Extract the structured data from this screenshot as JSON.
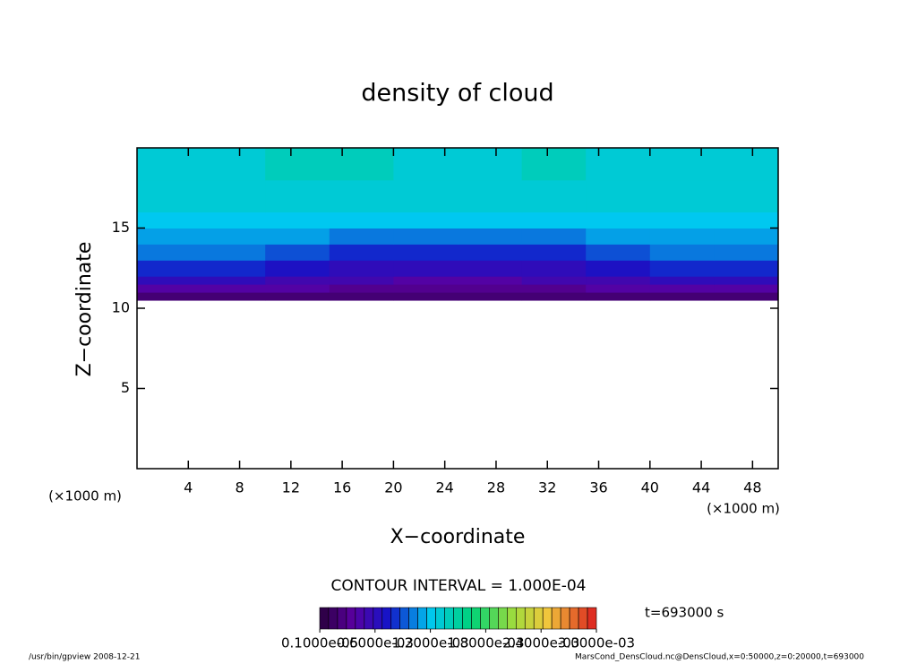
{
  "chart_data": {
    "type": "contour",
    "title": "density of cloud",
    "x_label": "X−coordinate",
    "y_label": "Z−coordinate",
    "x_unit": "(×1000 m)",
    "y_unit": "(×1000 m)",
    "xlim": [
      0,
      50
    ],
    "ylim": [
      0,
      20
    ],
    "xticks": [
      4,
      8,
      12,
      16,
      20,
      24,
      28,
      32,
      36,
      40,
      44,
      48
    ],
    "yticks": [
      5,
      10,
      15
    ],
    "x_edges": [
      0,
      5,
      10,
      15,
      20,
      25,
      30,
      35,
      40,
      45,
      50
    ],
    "z_edges": [
      10.5,
      11,
      11.5,
      12,
      13,
      14,
      15,
      16,
      18,
      20
    ],
    "values": [
      [
        0.0002,
        0.0002,
        0.0002,
        0.0002,
        0.0002,
        0.0002,
        0.0002,
        0.0002,
        0.0002,
        0.0002
      ],
      [
        0.0004,
        0.0004,
        0.0004,
        0.0003,
        0.0003,
        0.0003,
        0.0003,
        0.0004,
        0.0004,
        0.0004
      ],
      [
        0.0006,
        0.0006,
        0.0005,
        0.0005,
        0.0004,
        0.0004,
        0.0005,
        0.0005,
        0.0006,
        0.0006
      ],
      [
        0.0008,
        0.0008,
        0.0007,
        0.0006,
        0.0006,
        0.0006,
        0.0006,
        0.0007,
        0.0008,
        0.0008
      ],
      [
        0.001,
        0.001,
        0.0009,
        0.0008,
        0.0008,
        0.0008,
        0.0008,
        0.0009,
        0.001,
        0.001
      ],
      [
        0.0011,
        0.0011,
        0.0011,
        0.001,
        0.001,
        0.001,
        0.001,
        0.0011,
        0.0011,
        0.0011
      ],
      [
        0.0012,
        0.0012,
        0.0012,
        0.0012,
        0.0012,
        0.0012,
        0.0012,
        0.0012,
        0.0012,
        0.0012
      ],
      [
        0.0013,
        0.0013,
        0.0013,
        0.0013,
        0.0013,
        0.0013,
        0.0013,
        0.0013,
        0.0013,
        0.0013
      ],
      [
        0.0013,
        0.0013,
        0.0014,
        0.0014,
        0.0013,
        0.0013,
        0.0014,
        0.0013,
        0.0013,
        0.0013
      ]
    ],
    "contour_interval": "CONTOUR INTERVAL = 1.000E-04",
    "clim": [
      0,
      0.003
    ],
    "cticks": [
      {
        "value": 1e-06,
        "label": "0.1000e-05"
      },
      {
        "value": 0.0006,
        "label": "0.6000e-03"
      },
      {
        "value": 0.0012,
        "label": "1.2000e-03"
      },
      {
        "value": 0.0018,
        "label": "1.8000e-03"
      },
      {
        "value": 0.0024,
        "label": "2.4000e-03"
      },
      {
        "value": 0.003,
        "label": "3.0000e-03"
      }
    ],
    "time_label": "t=693000 s",
    "footer_left": "/usr/bin/gpview   2008-12-21",
    "footer_right": "MarsCond_DensCloud.nc@DensCloud,x=0:50000,z=0:20000,t=693000"
  }
}
